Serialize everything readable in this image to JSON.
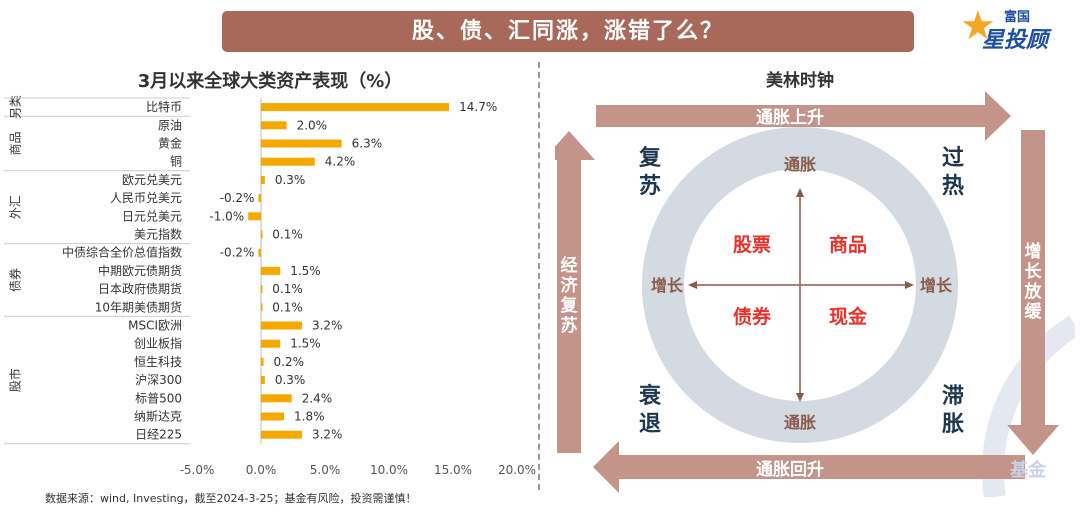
{
  "header": {
    "title": "股、债、汇同涨，涨错了么？",
    "logo_line1": "富国",
    "logo_line2": "星投顾",
    "watermark": "基金"
  },
  "chart_data": {
    "type": "bar",
    "orientation": "horizontal",
    "title": "3月以来全球大类资产表现（%）",
    "categories": [
      "比特币",
      "原油",
      "黄金",
      "铜",
      "欧元兑美元",
      "人民币兑美元",
      "日元兑美元",
      "美元指数",
      "中债综合全价总值指数",
      "中期欧元债期货",
      "日本政府债期货",
      "10年期美债期货",
      "MSCI欧洲",
      "创业板指",
      "恒生科技",
      "沪深300",
      "标普500",
      "纳斯达克",
      "日经225"
    ],
    "values": [
      14.7,
      2.0,
      6.3,
      4.2,
      0.3,
      -0.2,
      -1.0,
      0.1,
      -0.2,
      1.5,
      0.1,
      0.1,
      3.2,
      1.5,
      0.2,
      0.3,
      2.4,
      1.8,
      3.2
    ],
    "value_labels": [
      "14.7%",
      "2.0%",
      "6.3%",
      "4.2%",
      "0.3%",
      "-0.2%",
      "-1.0%",
      "0.1%",
      "-0.2%",
      "1.5%",
      "0.1%",
      "0.1%",
      "3.2%",
      "1.5%",
      "0.2%",
      "0.3%",
      "2.4%",
      "1.8%",
      "3.2%"
    ],
    "groups": [
      {
        "name": "另类",
        "start": 0,
        "end": 0
      },
      {
        "name": "商品",
        "start": 1,
        "end": 3
      },
      {
        "name": "外汇",
        "start": 4,
        "end": 7
      },
      {
        "name": "债券",
        "start": 8,
        "end": 11
      },
      {
        "name": "股市",
        "start": 12,
        "end": 18
      }
    ],
    "xlim": [
      -5.0,
      20.0
    ],
    "xticks": [
      -5,
      0,
      5,
      10,
      15,
      20
    ],
    "xtick_labels": [
      "-5.0%",
      "0.0%",
      "5.0%",
      "10.0%",
      "15.0%",
      "20.0%"
    ],
    "bar_color": "#f5a800",
    "grid": false
  },
  "source": "数据来源：wind, Investing，截至2024-3-25；基金有风险，投资需谨慎！",
  "merrill_clock": {
    "title": "美林时钟",
    "arrow_top": "通胀上升",
    "arrow_right": "增长放缓",
    "arrow_bottom": "通胀回升",
    "arrow_left": "经济复苏",
    "corner_tl": "复苏",
    "corner_tr": "过热",
    "corner_bl": "衰退",
    "corner_br": "滞胀",
    "axis_top": "通胀",
    "axis_bottom": "通胀",
    "axis_left": "增长",
    "axis_right": "增长",
    "quadrant_tl": "股票",
    "quadrant_tr": "商品",
    "quadrant_bl": "债券",
    "quadrant_br": "现金",
    "arrow_color": "#c4948a",
    "asset_color": "#e8322c",
    "corner_color": "#1f3550",
    "ring_color": "#d3dae2"
  }
}
